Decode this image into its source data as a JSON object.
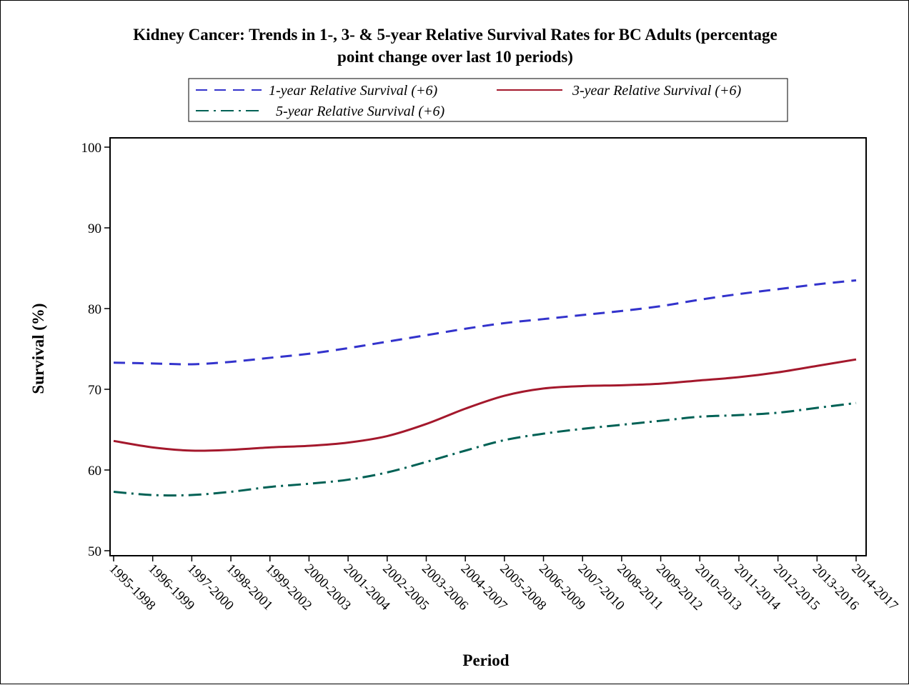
{
  "chart_data": {
    "type": "line",
    "title_line1": "Kidney Cancer: Trends in 1-, 3- & 5-year Relative Survival Rates for BC Adults (percentage",
    "title_line2": "point change over last 10 periods)",
    "xlabel": "Period",
    "ylabel": "Survival (%)",
    "ylim": [
      50,
      100
    ],
    "yticks": [
      50,
      60,
      70,
      80,
      90,
      100
    ],
    "grid": false,
    "legend_position": "top",
    "categories": [
      "1995-1998",
      "1996-1999",
      "1997-2000",
      "1998-2001",
      "1999-2002",
      "2000-2003",
      "2001-2004",
      "2002-2005",
      "2003-2006",
      "2004-2007",
      "2005-2008",
      "2006-2009",
      "2007-2010",
      "2008-2011",
      "2009-2012",
      "2010-2013",
      "2011-2014",
      "2012-2015",
      "2013-2016",
      "2014-2017"
    ],
    "series": [
      {
        "name": "1-year Relative Survival (+6)",
        "color": "#3333cc",
        "dash": "dashed",
        "values": [
          73.3,
          73.2,
          73.1,
          73.4,
          73.9,
          74.4,
          75.1,
          75.9,
          76.7,
          77.5,
          78.2,
          78.7,
          79.2,
          79.7,
          80.3,
          81.1,
          81.8,
          82.4,
          83.0,
          83.5
        ]
      },
      {
        "name": "3-year Relative Survival (+6)",
        "color": "#a4182c",
        "dash": "solid",
        "values": [
          63.6,
          62.8,
          62.4,
          62.5,
          62.8,
          63.0,
          63.4,
          64.2,
          65.7,
          67.6,
          69.2,
          70.1,
          70.4,
          70.5,
          70.7,
          71.1,
          71.5,
          72.1,
          72.9,
          73.7
        ]
      },
      {
        "name": "5-year Relative Survival (+6)",
        "color": "#006155",
        "dash": "dashdot",
        "values": [
          57.3,
          56.9,
          56.9,
          57.3,
          57.9,
          58.3,
          58.8,
          59.7,
          61.0,
          62.4,
          63.7,
          64.5,
          65.1,
          65.6,
          66.1,
          66.6,
          66.8,
          67.1,
          67.7,
          68.3
        ]
      }
    ]
  }
}
